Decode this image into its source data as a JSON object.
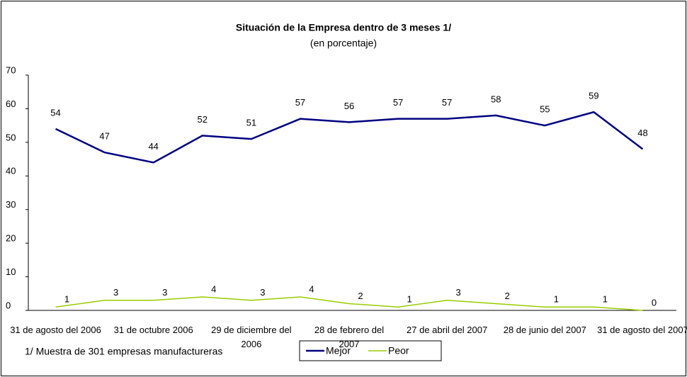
{
  "chart_data": {
    "type": "line",
    "title": "Situación de la Empresa dentro de 3 meses 1/",
    "subtitle": "(en porcentaje)",
    "note": "1/ Muestra de 301 empresas manufactureras",
    "categories": [
      "31 de agosto del 2006",
      null,
      "31 de octubre 2006",
      null,
      "29 de diciembre del 2006",
      null,
      "28 de febrero del 2007",
      null,
      "27 de abril del 2007",
      null,
      "28 de junio del 2007",
      null,
      "31 de agosto del 2007"
    ],
    "series": [
      {
        "name": "Mejor",
        "color": "#000080",
        "values": [
          54,
          47,
          44,
          52,
          51,
          57,
          56,
          57,
          57,
          58,
          55,
          59,
          48
        ]
      },
      {
        "name": "Peor",
        "color": "#99cc00",
        "values": [
          1,
          3,
          3,
          4,
          3,
          4,
          2,
          1,
          3,
          2,
          1,
          1,
          0
        ]
      }
    ],
    "ylim": [
      0,
      70
    ],
    "yticks": [
      0,
      10,
      20,
      30,
      40,
      50,
      60,
      70
    ],
    "grid": false,
    "legend": "bottom"
  }
}
